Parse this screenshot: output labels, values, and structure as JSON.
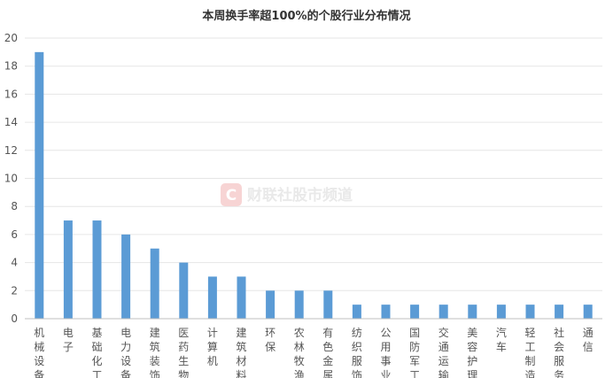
{
  "chart_data": {
    "type": "bar",
    "title": "本周换手率超100%的个股行业分布情况",
    "xlabel": "",
    "ylabel": "",
    "ylim": [
      0,
      20
    ],
    "yticks": [
      0,
      2,
      4,
      6,
      8,
      10,
      12,
      14,
      16,
      18,
      20
    ],
    "grid": true,
    "legend": "none",
    "bar_color": "#5b9bd5",
    "categories": [
      "机械设备",
      "电子",
      "基础化工",
      "电力设备",
      "建筑装饰",
      "医药生物",
      "计算机",
      "建筑材料",
      "环保",
      "农林牧渔",
      "有色金属",
      "纺织服饰",
      "公用事业",
      "国防军工",
      "交通运输",
      "美容护理",
      "汽车",
      "轻工制造",
      "社会服务",
      "通信"
    ],
    "values": [
      19,
      7,
      7,
      6,
      5,
      4,
      3,
      3,
      2,
      2,
      2,
      1,
      1,
      1,
      1,
      1,
      1,
      1,
      1,
      1
    ]
  },
  "watermark": {
    "logo_letter": "C",
    "text": "财联社股市频道",
    "logo_color": "#f7d4d4"
  }
}
